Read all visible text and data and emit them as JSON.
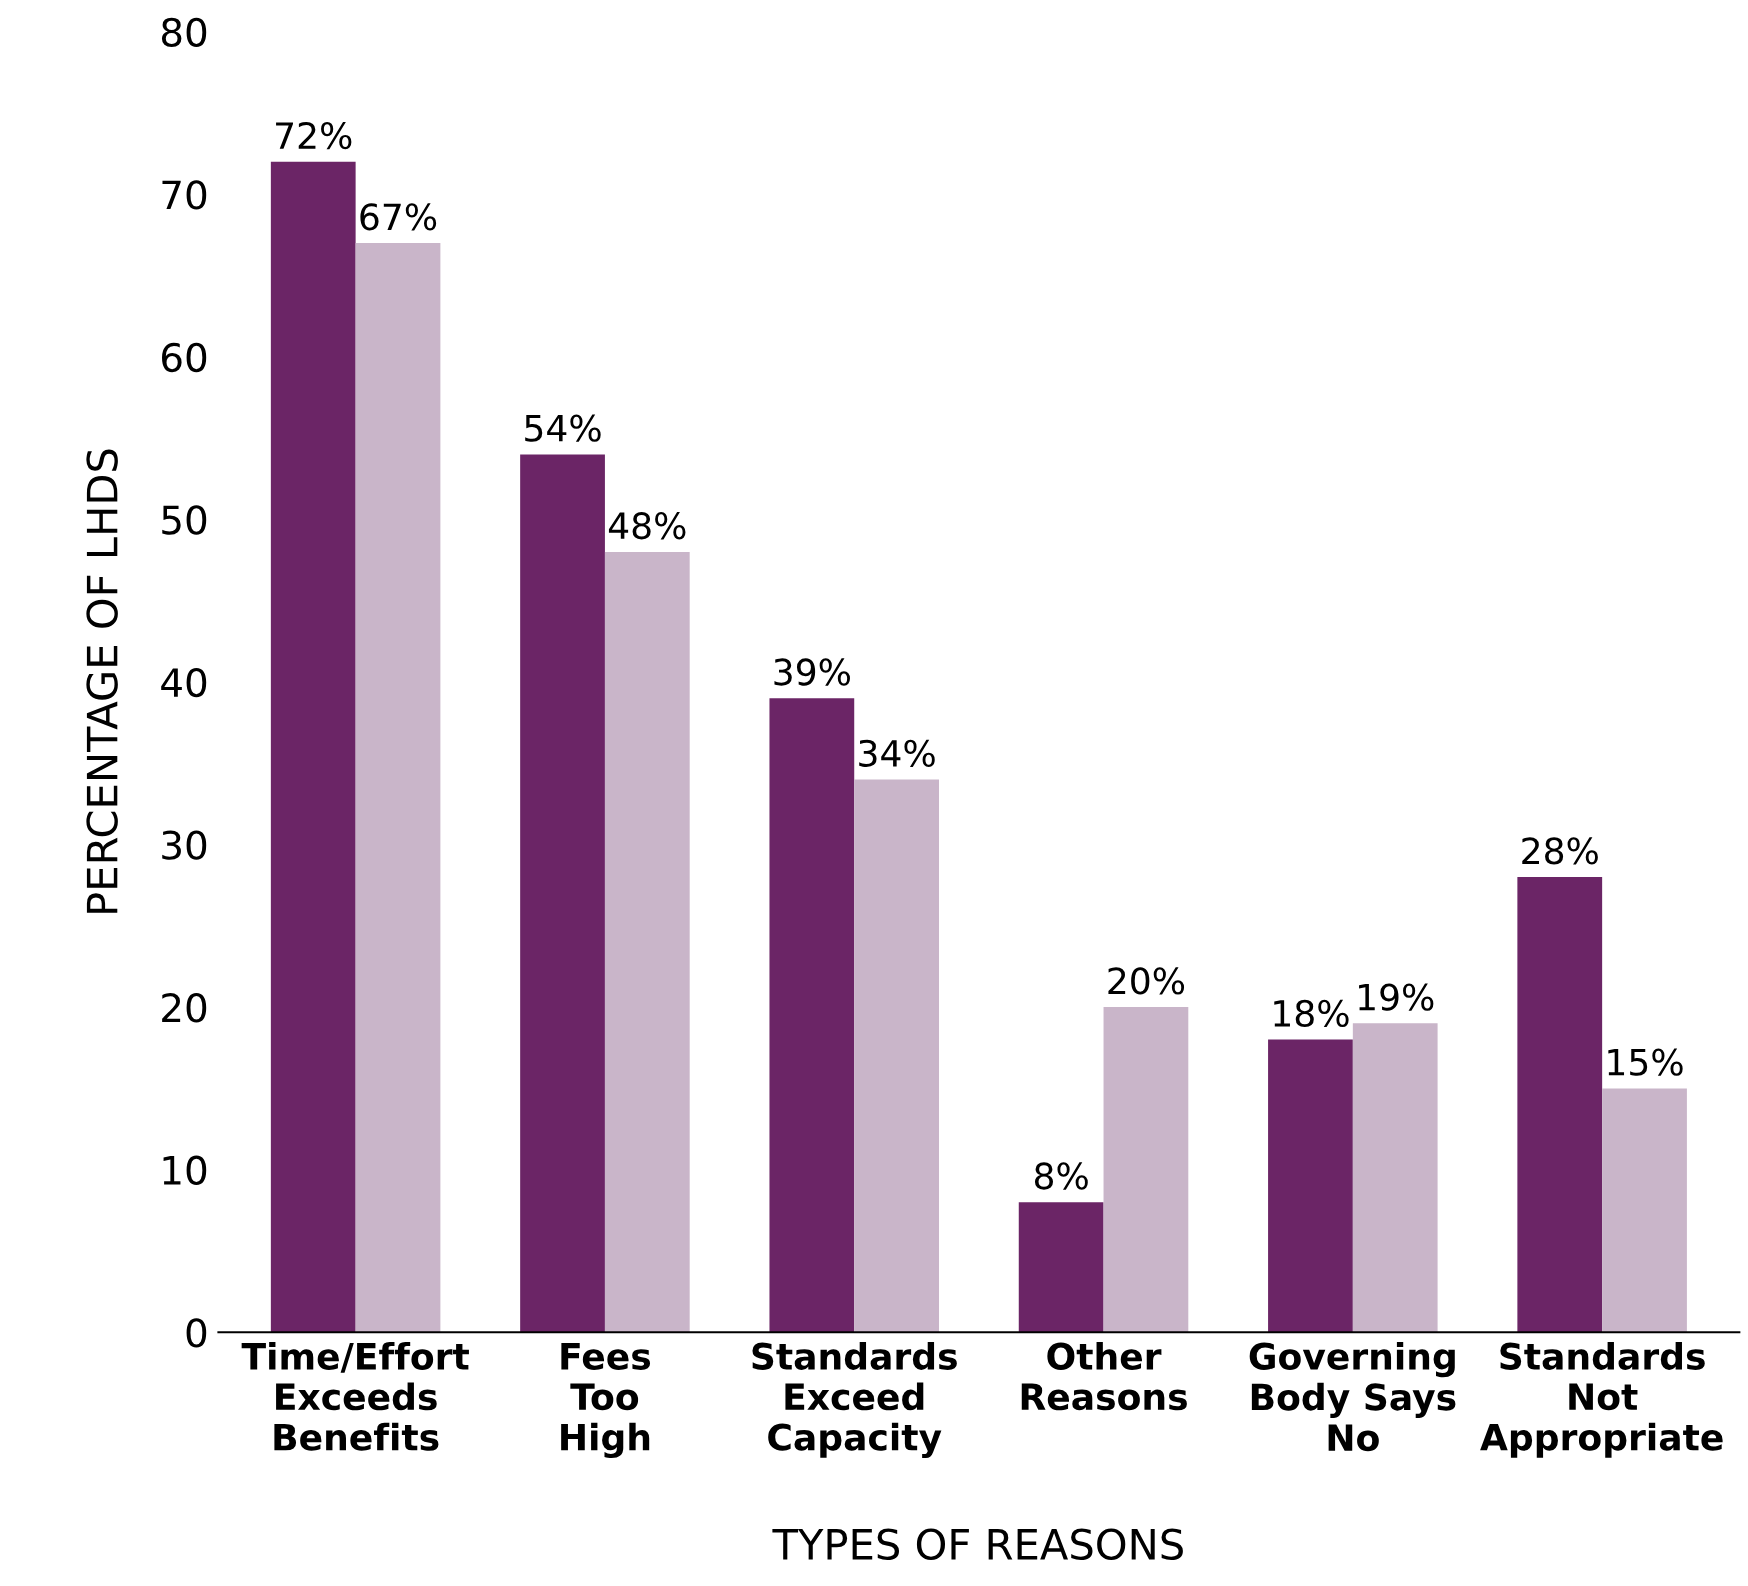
{
  "chart_data": {
    "type": "bar",
    "xlabel": "TYPES OF REASONS",
    "ylabel": "PERCENTAGE OF LHDS",
    "categories": [
      "Time/Effort\nExceeds\nBenefits",
      "Fees\nToo\nHigh",
      "Standards\nExceed\nCapacity",
      "Other\nReasons",
      "Governing\nBody Says\nNo",
      "Standards\nNot\nAppropriate"
    ],
    "series": [
      {
        "color": "#6b2566",
        "values": [
          72,
          54,
          39,
          8,
          18,
          28
        ],
        "value_labels": [
          "72%",
          "54%",
          "39%",
          "8%",
          "18%",
          "28%"
        ]
      },
      {
        "color": "#c9b5c9",
        "values": [
          67,
          48,
          34,
          20,
          19,
          15
        ],
        "value_labels": [
          "67%",
          "48%",
          "34%",
          "20%",
          "19%",
          "15%"
        ]
      }
    ],
    "ylim": [
      0,
      80
    ],
    "yticks": [
      0,
      10,
      20,
      30,
      40,
      50,
      60,
      70,
      80
    ],
    "grid": false,
    "legend": false
  }
}
